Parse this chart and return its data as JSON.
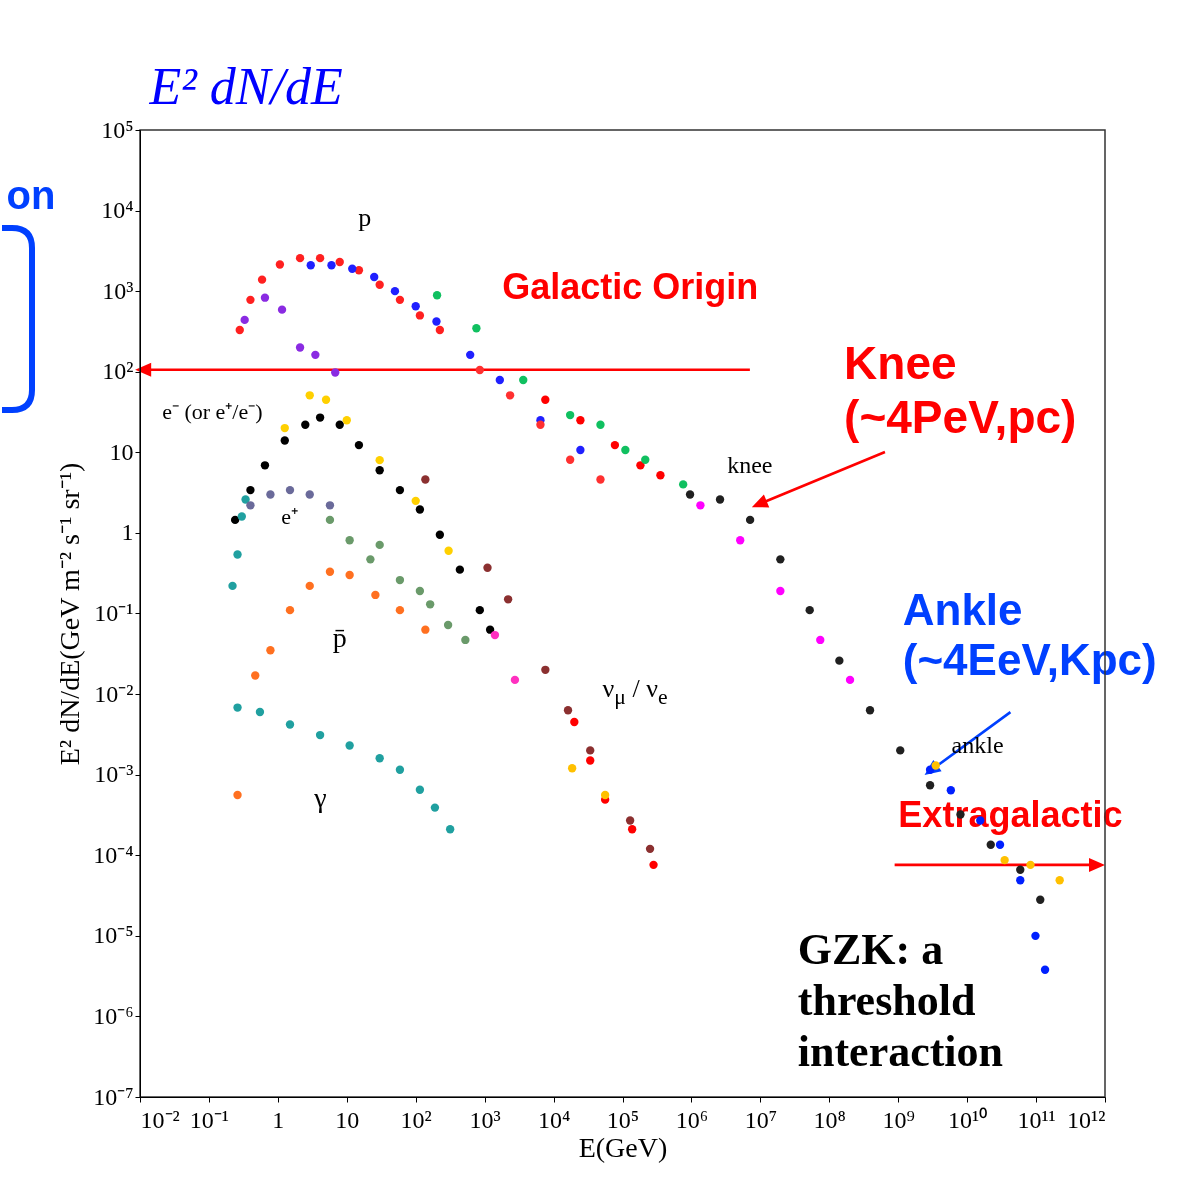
{
  "chart_data": {
    "type": "scatter",
    "xlabel": "E(GeV)",
    "ylabel": "E² dN/dE(GeV m⁻² s⁻¹ sr⁻¹)",
    "log": "xy",
    "marker": "circle",
    "xlim": [
      0.01,
      1000000000000.0
    ],
    "ylim": [
      1e-07,
      100000.0
    ],
    "xticks": [
      {
        "value": 0.01,
        "label": "10⁻²"
      },
      {
        "value": 0.1,
        "label": "10⁻¹"
      },
      1,
      10,
      {
        "value": 100,
        "label": "10²"
      },
      {
        "value": 1000,
        "label": "10³"
      },
      {
        "value": 10000.0,
        "label": "10⁴"
      },
      {
        "value": 100000.0,
        "label": "10⁵"
      },
      {
        "value": 1000000.0,
        "label": "10⁶"
      },
      {
        "value": 10000000.0,
        "label": "10⁷"
      },
      {
        "value": 100000000.0,
        "label": "10⁸"
      },
      {
        "value": 1000000000.0,
        "label": "10⁹"
      },
      {
        "value": 10000000000.0,
        "label": "10¹⁰"
      },
      {
        "value": 100000000000.0,
        "label": "10¹¹"
      },
      {
        "value": 1000000000000.0,
        "label": "10¹²"
      }
    ],
    "yticks": [
      {
        "value": 1e-07,
        "label": "10⁻⁷"
      },
      {
        "value": 1e-06,
        "label": "10⁻⁶"
      },
      {
        "value": 1e-05,
        "label": "10⁻⁵"
      },
      {
        "value": 0.0001,
        "label": "10⁻⁴"
      },
      {
        "value": 0.001,
        "label": "10⁻³"
      },
      {
        "value": 0.01,
        "label": "10⁻²"
      },
      {
        "value": 0.1,
        "label": "10⁻¹"
      },
      1,
      10,
      {
        "value": 100,
        "label": "10²"
      },
      {
        "value": 1000,
        "label": "10³"
      },
      {
        "value": 10000.0,
        "label": "10⁴"
      },
      {
        "value": 100000.0,
        "label": "10⁵"
      }
    ],
    "series": [
      {
        "color": "#ff2020",
        "x": [
          0.28,
          0.4,
          0.59,
          1.07,
          2.1,
          4.1,
          7.9,
          15,
          30,
          59,
          115,
          224
        ],
        "values": [
          330,
          780,
          1390,
          2140,
          2570,
          2570,
          2300,
          1820,
          1200,
          780,
          500,
          330
        ]
      },
      {
        "color": "#2020ff",
        "x": [
          3,
          6,
          12,
          25,
          50,
          100,
          200,
          617,
          1660,
          6450,
          24500
        ],
        "values": [
          2100,
          2100,
          1900,
          1500,
          1000,
          650,
          420,
          162,
          79,
          25,
          10.7
        ]
      },
      {
        "color": "#ff3030",
        "x": [
          851,
          2340,
          6450,
          17400,
          47900
        ],
        "values": [
          105,
          51,
          22,
          8.1,
          4.6
        ]
      },
      {
        "color": "#ff0000",
        "x": [
          7590,
          24500,
          77600,
          182000,
          355000
        ],
        "values": [
          45,
          25,
          12.3,
          6.9,
          5.2
        ]
      },
      {
        "color": "#10c060",
        "x": [
          204,
          759,
          3630,
          17400,
          47900,
          110000,
          214000,
          759000
        ],
        "values": [
          890,
          347,
          79,
          29,
          22,
          10.7,
          8.1,
          4.0
        ]
      },
      {
        "color": "#8a2be2",
        "x": [
          0.33,
          0.65,
          1.15,
          2.1,
          3.5,
          6.8
        ],
        "values": [
          440,
          830,
          590,
          200,
          162,
          98
        ]
      },
      {
        "color": "#202020",
        "x": [
          955000,
          2600000.0,
          7100000.0,
          19500000.0,
          52000000.0,
          140000000.0,
          390000000.0,
          1070000000.0,
          2900000000.0,
          8000000000.0,
          22000000000.0,
          59000000000.0,
          115000000000.0
        ],
        "values": [
          3.0,
          2.6,
          1.45,
          0.47,
          0.11,
          0.026,
          0.0063,
          0.002,
          0.00074,
          0.00032,
          0.000135,
          6.6e-05,
          2.8e-05
        ]
      },
      {
        "color": "#ff00ff",
        "x": [
          1350000.0,
          5100000.0,
          19500000.0,
          74000000.0,
          200000000.0
        ],
        "values": [
          2.2,
          0.81,
          0.19,
          0.047,
          0.015
        ]
      },
      {
        "color": "#0020ff",
        "x": [
          2900000000.0,
          5800000000.0,
          15500000000.0,
          30000000000.0,
          59000000000.0,
          98000000000.0,
          135000000000.0
        ],
        "values": [
          0.00115,
          0.00064,
          0.00027,
          0.000135,
          4.9e-05,
          1e-05,
          3.8e-06
        ]
      },
      {
        "color": "#ffc000",
        "x": [
          3500000000.0,
          35000000000.0,
          83000000000.0,
          220000000000.0
        ],
        "values": [
          0.0013,
          8.7e-05,
          7.6e-05,
          4.9e-05
        ]
      },
      {
        "color": "#000000",
        "x": [
          0.24,
          0.4,
          0.65,
          1.26,
          2.5,
          4.1,
          7.9,
          15,
          30,
          59,
          115,
          224,
          437,
          851,
          1200
        ],
        "values": [
          1.45,
          3.4,
          6.9,
          14,
          22,
          27,
          22,
          12.3,
          6.0,
          3.4,
          1.95,
          0.95,
          0.35,
          0.11,
          0.063
        ]
      },
      {
        "color": "#20a0a0",
        "x": [
          0.22,
          0.26,
          0.3,
          0.34
        ],
        "values": [
          0.22,
          0.54,
          1.6,
          2.6
        ]
      },
      {
        "color": "#ffd000",
        "x": [
          1.26,
          2.9,
          5,
          10,
          30,
          100,
          300
        ],
        "values": [
          20,
          51,
          45,
          25,
          8,
          2.5,
          0.6
        ]
      },
      {
        "color": "#6a6a9a",
        "x": [
          0.4,
          0.78,
          1.5,
          2.9,
          5.7
        ],
        "values": [
          2.2,
          3.0,
          3.4,
          3.0,
          2.2
        ]
      },
      {
        "color": "#6a9a6a",
        "x": [
          5.7,
          11,
          22,
          59,
          162,
          295
        ],
        "values": [
          1.45,
          0.81,
          0.47,
          0.26,
          0.13,
          0.072
        ]
      },
      {
        "color": "#ff7020",
        "x": [
          0.47,
          0.78,
          1.5,
          2.9,
          5.7,
          11,
          26,
          59,
          138
        ],
        "values": [
          0.017,
          0.035,
          0.11,
          0.22,
          0.33,
          0.3,
          0.17,
          0.11,
          0.063
        ]
      },
      {
        "color": "#20a0a0",
        "x": [
          0.26,
          0.55,
          1.5,
          4.1,
          11,
          30,
          59,
          115,
          190,
          316
        ],
        "values": [
          0.0068,
          0.006,
          0.0042,
          0.0031,
          0.0023,
          0.0016,
          0.00115,
          0.00065,
          0.00039,
          0.00021
        ]
      },
      {
        "color": "#ff7020",
        "x": [
          0.26
        ],
        "values": [
          0.00056
        ]
      },
      {
        "color": "#ff0000",
        "x": [
          20000,
          34000,
          56000,
          138000,
          282000
        ],
        "values": [
          0.0045,
          0.0015,
          0.00049,
          0.00021,
          7.6e-05
        ]
      },
      {
        "color": "#8b3030",
        "x": [
          138,
          1100,
          2190,
          7600,
          16200,
          34000,
          129000,
          251000
        ],
        "values": [
          4.6,
          0.37,
          0.15,
          0.02,
          0.0063,
          0.002,
          0.00027,
          0.00012
        ]
      },
      {
        "color": "#ffc000",
        "x": [
          18600,
          56000
        ],
        "values": [
          0.0012,
          0.00056
        ]
      },
      {
        "color": "#ff30c0",
        "x": [
          1410,
          2750
        ],
        "values": [
          0.054,
          0.015
        ]
      },
      {
        "color": "#6a9a6a",
        "x": [
          30,
          115,
          525
        ],
        "values": [
          0.71,
          0.19,
          0.047
        ]
      }
    ],
    "annotations": [
      "E² dN/dE",
      "on",
      "p",
      "e⁻ (or e⁺/e⁻)",
      "e⁺",
      "p̄",
      "ν$_{μ}$ / ν$_{e}$",
      "γ",
      "knee",
      "ankle",
      "Galactic Origin",
      "Knee\n(~4PeV,pc)",
      "Ankle\n(~4EeV,Kpc)",
      "Extragalactic",
      "GZK: a\nthreshold\ninteraction"
    ]
  }
}
